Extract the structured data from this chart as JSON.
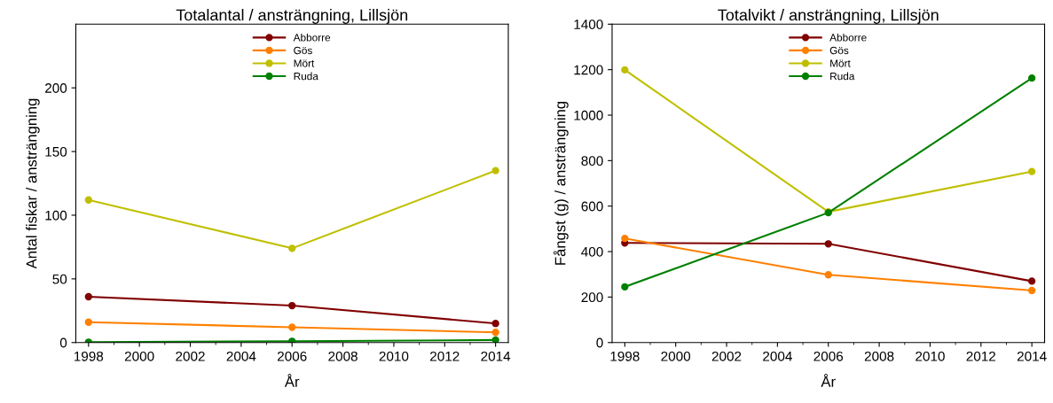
{
  "chart_data": [
    {
      "type": "line",
      "title": "Totalantal / ansträngning, Lillsjön",
      "xlabel": "År",
      "ylabel": "Antal fiskar / ansträngning",
      "x": [
        1998,
        2006,
        2014
      ],
      "series": [
        {
          "name": "Abborre",
          "color": "#800000",
          "values": [
            36,
            29,
            15
          ]
        },
        {
          "name": "Gös",
          "color": "#ff8000",
          "values": [
            16,
            12,
            8
          ]
        },
        {
          "name": "Mört",
          "color": "#bfbf00",
          "values": [
            112,
            74,
            135
          ]
        },
        {
          "name": "Ruda",
          "color": "#008000",
          "values": [
            0.3,
            1,
            2
          ]
        }
      ],
      "xlim": [
        1997.5,
        2014.5
      ],
      "xticks": [
        1998,
        2000,
        2002,
        2004,
        2006,
        2008,
        2010,
        2012,
        2014
      ],
      "ylim": [
        0,
        250
      ],
      "yticks": [
        0,
        50,
        100,
        150,
        200
      ],
      "grid": false,
      "legend": "top",
      "marker": "circle",
      "line_style": "solid"
    },
    {
      "type": "line",
      "title": "Totalvikt / ansträngning, Lillsjön",
      "xlabel": "År",
      "ylabel": "Fångst (g) / ansträngning",
      "x": [
        1998,
        2006,
        2014
      ],
      "series": [
        {
          "name": "Abborre",
          "color": "#800000",
          "values": [
            438,
            434,
            270
          ]
        },
        {
          "name": "Gös",
          "color": "#ff8000",
          "values": [
            458,
            298,
            229
          ]
        },
        {
          "name": "Mört",
          "color": "#bfbf00",
          "values": [
            1199,
            575,
            752
          ]
        },
        {
          "name": "Ruda",
          "color": "#008000",
          "values": [
            245,
            571,
            1163
          ]
        }
      ],
      "xlim": [
        1997.5,
        2014.5
      ],
      "xticks": [
        1998,
        2000,
        2002,
        2004,
        2006,
        2008,
        2010,
        2012,
        2014
      ],
      "ylim": [
        0,
        1400
      ],
      "yticks": [
        0,
        200,
        400,
        600,
        800,
        1000,
        1200,
        1400
      ],
      "grid": false,
      "legend": "top",
      "marker": "circle",
      "line_style": "solid"
    }
  ]
}
